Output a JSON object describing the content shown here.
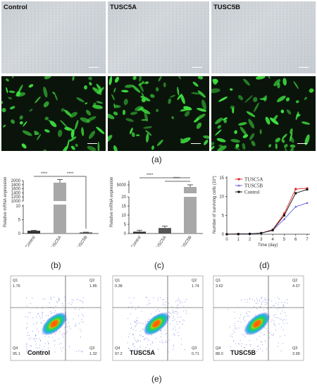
{
  "panel_a": {
    "labels": [
      "Control",
      "TUSC5A",
      "TUSC5B"
    ],
    "caption": "(a)"
  },
  "panel_b": {
    "caption": "(b)",
    "ylabel": "Relative mRNA expression",
    "significance": [
      "****",
      "****"
    ],
    "chart_data": {
      "type": "bar",
      "categories": [
        "Control",
        "TUSC5A",
        "TUSC5B"
      ],
      "values": [
        1,
        1900,
        0.4
      ],
      "errors": [
        0.15,
        150,
        0.1
      ],
      "ylim": [
        0,
        2000
      ],
      "broken_axis": true,
      "yticks_lower": [
        "0",
        "5",
        "10"
      ],
      "yticks_upper": [
        "1000",
        "1200",
        "1400",
        "1600",
        "1800",
        "2000"
      ]
    }
  },
  "panel_c": {
    "caption": "(c)",
    "ylabel": "Relative mRNA expression",
    "significance": [
      "****",
      "****"
    ],
    "chart_data": {
      "type": "bar",
      "categories": [
        "Control",
        "TUSC5A",
        "TUSC5B"
      ],
      "values": [
        1,
        3,
        4500
      ],
      "errors": [
        0.8,
        1.0,
        500
      ],
      "ylim": [
        0,
        6000
      ],
      "broken_axis": true,
      "yticks_lower": [
        "0",
        "5",
        "10",
        "15",
        "20"
      ],
      "yticks_upper": [
        "5000"
      ]
    }
  },
  "panel_d": {
    "caption": "(d)",
    "xlabel": "Time (day)",
    "ylabel": "Number of surviving cells (10",
    "ylabel_exp": "4",
    "ylabel_close": ")",
    "chart_data": {
      "type": "line",
      "x": [
        0,
        1,
        2,
        3,
        4,
        5,
        6,
        7
      ],
      "xticks": [
        "0",
        "1",
        "2",
        "3",
        "4",
        "5",
        "6",
        "7"
      ],
      "yticks": [
        "0",
        "5",
        "10",
        "15"
      ],
      "ylim": [
        0,
        15
      ],
      "series": [
        {
          "name": "TUSC5A",
          "color": "#e02020",
          "marker": "circle",
          "values": [
            0,
            0.05,
            0.1,
            0.3,
            1.2,
            5.5,
            12.0,
            12.2
          ]
        },
        {
          "name": "TUSC5B",
          "color": "#6666dd",
          "marker": "triangle",
          "values": [
            0,
            0.05,
            0.1,
            0.3,
            1.0,
            4.0,
            7.3,
            8.3
          ]
        },
        {
          "name": "Control",
          "color": "#111111",
          "marker": "square",
          "values": [
            0,
            0.05,
            0.1,
            0.3,
            1.1,
            5.0,
            10.9,
            11.9
          ]
        }
      ]
    }
  },
  "panel_e": {
    "caption": "(e)",
    "plots": [
      {
        "name": "Control",
        "q1_label": "Q1",
        "q1": "1.76",
        "q2_label": "Q2",
        "q2": "1.85",
        "q3_label": "Q3",
        "q3": "1.32",
        "q4_label": "Q4",
        "q4": "95.1"
      },
      {
        "name": "TUSC5A",
        "q1_label": "Q1",
        "q1": "0.38",
        "q2_label": "Q2",
        "q2": "1.74",
        "q3_label": "Q3",
        "q3": "0.71",
        "q4_label": "Q4",
        "q4": "97.2"
      },
      {
        "name": "TUSC5B",
        "q1_label": "Q1",
        "q1": "3.62",
        "q2_label": "Q2",
        "q2": "4.37",
        "q3_label": "Q3",
        "q3": "3.99",
        "q4_label": "Q4",
        "q4": "88.0"
      }
    ]
  },
  "colors": {
    "fluor_green": "#3fe23f",
    "bar_gray": "#a8a8a8",
    "bar_dark": "#555555"
  }
}
